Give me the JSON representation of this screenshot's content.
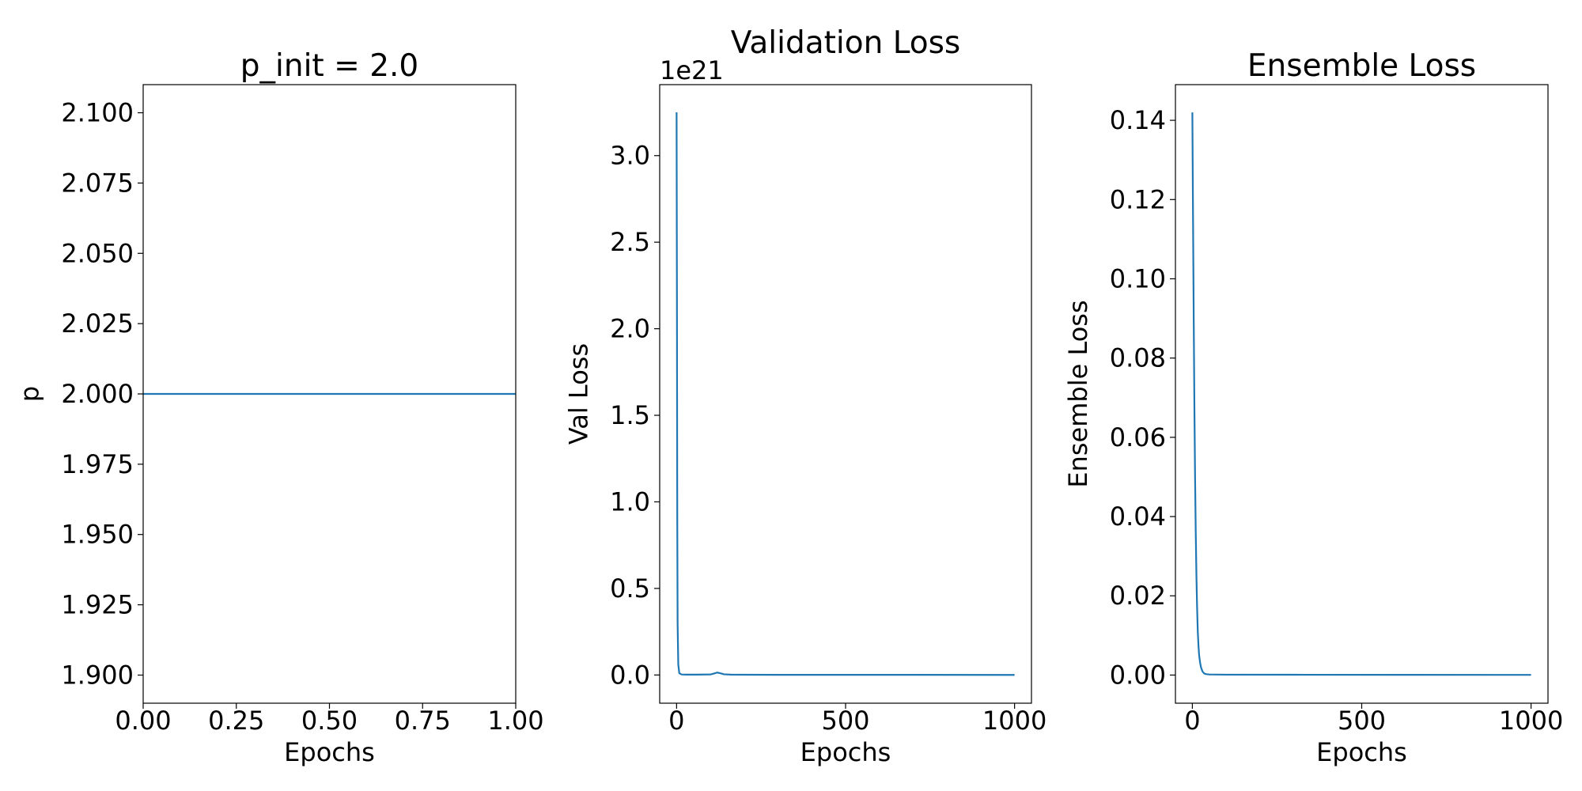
{
  "chart_data": [
    {
      "type": "line",
      "title": "p_init = 2.0",
      "xlabel": "Epochs",
      "ylabel": "p",
      "xlim": [
        0.0,
        1.0
      ],
      "ylim": [
        1.89,
        2.11
      ],
      "xticks": [
        0.0,
        0.25,
        0.5,
        0.75,
        1.0
      ],
      "xtick_labels": [
        "0.00",
        "0.25",
        "0.50",
        "0.75",
        "1.00"
      ],
      "yticks": [
        1.9,
        1.925,
        1.95,
        1.975,
        2.0,
        2.025,
        2.05,
        2.075,
        2.1
      ],
      "ytick_labels": [
        "1.900",
        "1.925",
        "1.950",
        "1.975",
        "2.000",
        "2.025",
        "2.050",
        "2.075",
        "2.100"
      ],
      "offset_text": "",
      "grid": false,
      "color": "#1f77b4",
      "series": [
        {
          "x": [
            0.0,
            1.0
          ],
          "y": [
            2.0,
            2.0
          ]
        }
      ]
    },
    {
      "type": "line",
      "title": "Validation Loss",
      "xlabel": "Epochs",
      "ylabel": "Val Loss",
      "xlim": [
        -50,
        1050
      ],
      "ylim": [
        -0.163,
        3.41
      ],
      "xticks": [
        0,
        500,
        1000
      ],
      "xtick_labels": [
        "0",
        "500",
        "1000"
      ],
      "yticks": [
        0.0,
        0.5,
        1.0,
        1.5,
        2.0,
        2.5,
        3.0
      ],
      "ytick_labels": [
        "0.0",
        "0.5",
        "1.0",
        "1.5",
        "2.0",
        "2.5",
        "3.0"
      ],
      "offset_text": "1e21",
      "grid": false,
      "color": "#1f77b4",
      "series": [
        {
          "x": [
            0,
            1,
            2,
            3,
            5,
            8,
            15,
            30,
            60,
            100,
            110,
            120,
            130,
            140,
            160,
            200,
            300,
            500,
            700,
            1000
          ],
          "y": [
            3.25,
            2.2,
            0.9,
            0.3,
            0.06,
            0.01,
            0.003,
            0.002,
            0.002,
            0.003,
            0.008,
            0.014,
            0.01,
            0.004,
            0.002,
            0.0015,
            0.001,
            0.001,
            0.0008,
            0.0005
          ]
        }
      ]
    },
    {
      "type": "line",
      "title": "Ensemble Loss",
      "xlabel": "Epochs",
      "ylabel": "Ensemble Loss",
      "xlim": [
        -50,
        1050
      ],
      "ylim": [
        -0.0071,
        0.149
      ],
      "xticks": [
        0,
        500,
        1000
      ],
      "xtick_labels": [
        "0",
        "500",
        "1000"
      ],
      "yticks": [
        0.0,
        0.02,
        0.04,
        0.06,
        0.08,
        0.1,
        0.12,
        0.14
      ],
      "ytick_labels": [
        "0.00",
        "0.02",
        "0.04",
        "0.06",
        "0.08",
        "0.10",
        "0.12",
        "0.14"
      ],
      "offset_text": "",
      "grid": false,
      "color": "#1f77b4",
      "series": [
        {
          "x": [
            0,
            2,
            4,
            6,
            8,
            10,
            12,
            14,
            16,
            18,
            20,
            23,
            26,
            30,
            35,
            40,
            50,
            100,
            300,
            600,
            1000
          ],
          "y": [
            0.142,
            0.115,
            0.09,
            0.068,
            0.05,
            0.036,
            0.025,
            0.017,
            0.011,
            0.0075,
            0.005,
            0.003,
            0.0018,
            0.0009,
            0.0004,
            0.00025,
            0.00015,
            0.0001,
            8e-05,
            6e-05,
            5e-05
          ]
        }
      ]
    }
  ]
}
